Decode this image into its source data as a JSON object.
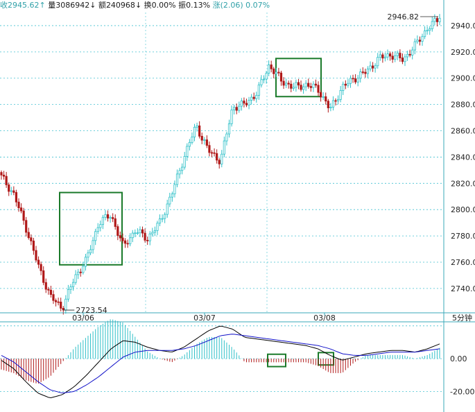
{
  "infobar": {
    "close_label": "收",
    "close_value": "2945.62",
    "close_arrow": "↑",
    "volume_label": "量",
    "volume_value": "3086942",
    "volume_arrow": "↓",
    "amount_label": "额",
    "amount_value": "240968",
    "amount_arrow": "↓",
    "turnover_label": "换",
    "turnover_value": "0.00%",
    "amplitude_label": "振",
    "amplitude_value": "0.13%",
    "change_label": "涨",
    "change_value": "(2.06)",
    "change_pct": "0.07%"
  },
  "period_label": "5分钟",
  "colors": {
    "up": "#2ec0c8",
    "down": "#b01818",
    "ma_black": "#000000",
    "ma_blue": "#1010c8",
    "grid": "#40c0d0",
    "box": "#1a7a2a"
  },
  "chart_data": [
    {
      "type": "candlestick",
      "title": "",
      "y_ticks": [
        "2940.0",
        "2920.0",
        "2900.0",
        "2880.0",
        "2860.0",
        "2840.0",
        "2820.0",
        "2800.0",
        "2780.0",
        "2760.0",
        "2740.0"
      ],
      "ylim": [
        2722,
        2950
      ],
      "x_ticks": [
        "03/06",
        "03/07",
        "03/08"
      ],
      "high_annotation": "2946.82",
      "low_annotation": "2723.54",
      "high": 2946.82,
      "low": 2723.54,
      "key_closes": [
        2825,
        2812,
        2787,
        2758,
        2734,
        2725,
        2748,
        2762,
        2790,
        2796,
        2772,
        2784,
        2778,
        2790,
        2812,
        2840,
        2864,
        2845,
        2837,
        2878,
        2880,
        2889,
        2910,
        2898,
        2893,
        2895,
        2892,
        2876,
        2893,
        2900,
        2905,
        2915,
        2918,
        2914,
        2925,
        2938,
        2945.62
      ],
      "highlight_boxes": [
        {
          "x_range": [
            "03/06",
            "03/06"
          ],
          "y_range": [
            2758,
            2813
          ]
        },
        {
          "x_range": [
            "03/07",
            "03/08"
          ],
          "y_range": [
            2886,
            2915
          ]
        }
      ],
      "grid": true
    },
    {
      "type": "macd",
      "y_ticks": [
        "0.00",
        "-20.00"
      ],
      "ylim": [
        -30,
        25
      ],
      "series": [
        {
          "values": [
            -1,
            -6,
            -14,
            -21,
            -24,
            -22,
            -17,
            -10,
            -2,
            6,
            11,
            10,
            7,
            5,
            4,
            7,
            12,
            17,
            20,
            18,
            13,
            12,
            11,
            10,
            9,
            8,
            6,
            2,
            -1,
            1,
            3,
            4,
            5,
            5,
            4,
            6,
            9
          ]
        },
        {
          "values": [
            2,
            -2,
            -8,
            -14,
            -19,
            -21,
            -20,
            -16,
            -11,
            -5,
            1,
            4,
            5,
            5,
            5,
            6,
            8,
            11,
            14,
            15,
            14,
            13,
            12,
            11,
            10,
            9,
            8,
            6,
            3,
            2,
            2,
            3,
            4,
            4,
            4,
            5,
            6
          ]
        }
      ],
      "highlight_boxes": [
        {
          "x_range": [
            "03/07",
            "03/08"
          ],
          "y_range": [
            -4,
            1
          ]
        },
        {
          "x_range": [
            "03/08",
            "03/08"
          ],
          "y_range": [
            -3,
            2
          ]
        }
      ],
      "grid": true
    }
  ]
}
